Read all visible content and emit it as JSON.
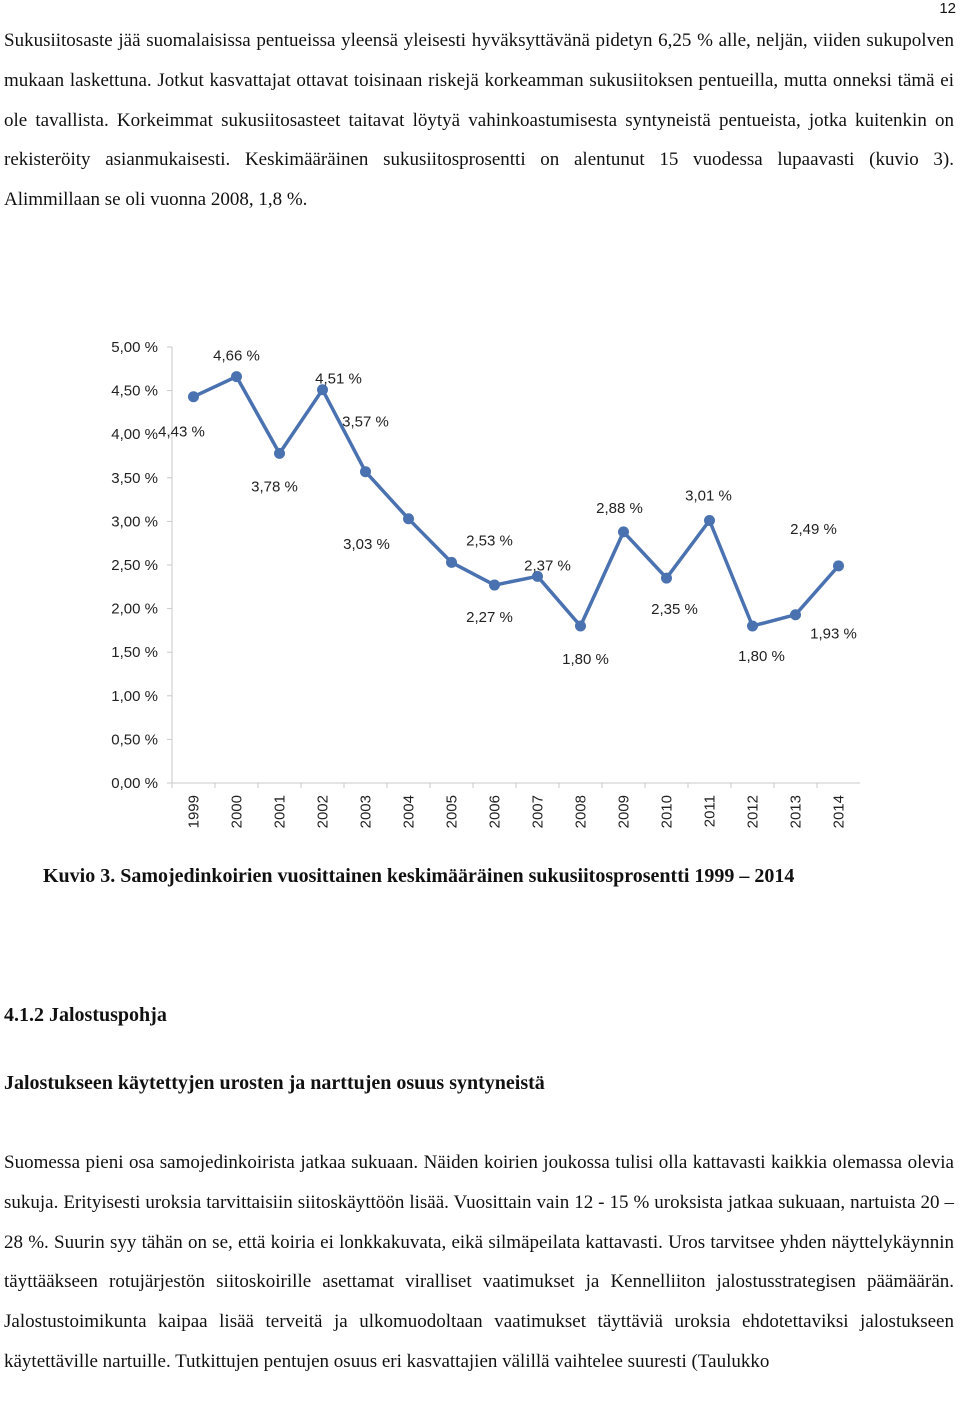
{
  "page_number": "12",
  "paragraph_1": "Sukusiitosaste jää suomalaisissa pentueissa yleensä yleisesti hyväksyttävänä pidetyn 6,25 % alle, neljän, viiden sukupolven mukaan laskettuna. Jotkut kasvattajat ottavat toisinaan riskejä korkeamman sukusiitoksen pentueilla, mutta onneksi tämä ei ole tavallista. Korkeimmat sukusiitosasteet taitavat löytyä vahinkoastumisesta syntyneistä pentueista, jotka kuitenkin on rekisteröity asianmukaisesti. Keskimääräinen sukusiitosprosentti on alentunut 15 vuodessa lupaavasti (kuvio 3). Alimmillaan se oli vuonna 2008, 1,8 %.",
  "chart_data": {
    "type": "line",
    "x": [
      "1999",
      "2000",
      "2001",
      "2002",
      "2003",
      "2004",
      "2005",
      "2006",
      "2007",
      "2008",
      "2009",
      "2010",
      "2011",
      "2012",
      "2013",
      "2014"
    ],
    "series": [
      {
        "values": [
          4.43,
          4.66,
          3.78,
          4.51,
          3.57,
          3.03,
          2.53,
          2.27,
          2.37,
          1.8,
          2.88,
          2.35,
          3.01,
          1.8,
          1.93,
          2.49
        ]
      }
    ],
    "data_labels": [
      "4,43 %",
      "4,66 %",
      "3,78 %",
      "4,51 %",
      "3,57 %",
      "3,03 %",
      "2,53 %",
      "2,27 %",
      "2,37 %",
      "1,80 %",
      "2,88 %",
      "2,35 %",
      "3,01 %",
      "1,80 %",
      "1,93 %",
      "2,49 %"
    ],
    "y_ticks": [
      "0,00 %",
      "0,50 %",
      "1,00 %",
      "1,50 %",
      "2,00 %",
      "2,50 %",
      "3,00 %",
      "3,50 %",
      "4,00 %",
      "4,50 %",
      "5,00 %"
    ],
    "ylim": [
      0,
      5
    ],
    "grid": false,
    "line_color": "#4a72b0",
    "title": "",
    "xlabel": "",
    "ylabel": ""
  },
  "caption": "Kuvio 3. Samojedinkoirien vuosittainen keskimääräinen sukusiitosprosentti 1999 – 2014",
  "heading_1": "4.1.2 Jalostuspohja",
  "heading_2": "Jalostukseen käytettyjen urosten ja narttujen osuus syntyneistä",
  "paragraph_2": "Suomessa pieni osa samojedinkoirista jatkaa sukuaan. Näiden koirien joukossa tulisi olla kattavasti kaikkia olemassa olevia sukuja. Erityisesti uroksia tarvittaisiin siitoskäyttöön lisää. Vuosittain vain 12 - 15 % uroksista jatkaa sukuaan, nartuista 20 – 28 %. Suurin syy tähän on se, että koiria ei lonkkakuvata, eikä silmäpeilata kattavasti. Uros tarvitsee yhden näyttelykäynnin täyttääkseen rotujärjestön siitoskoirille asettamat viralliset vaatimukset ja Kennelliiton jalostusstrategisen päämäärän. Jalostustoimikunta kaipaa lisää terveitä ja ulkomuodoltaan vaatimukset täyttäviä uroksia ehdotettaviksi jalostukseen käytettäville nartuille. Tutkittujen pentujen osuus eri kasvattajien välillä vaihtelee suuresti (Taulukko"
}
